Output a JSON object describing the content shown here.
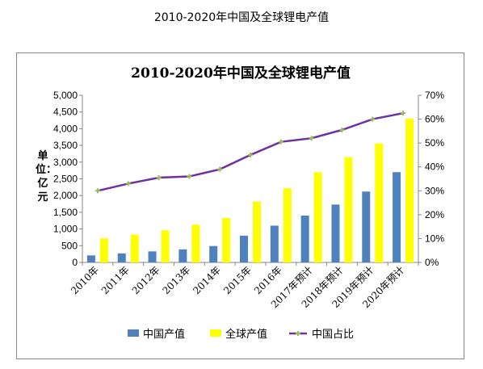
{
  "page_caption": "2010-2020年中国及全球锂电产值",
  "chart_data": {
    "type": "bar",
    "title": "2010-2020年中国及全球锂电产值",
    "ylabel": "单位：亿元",
    "categories": [
      "2010年",
      "2011年",
      "2012年",
      "2013年",
      "2014年",
      "2015年",
      "2016年",
      "2017年预计",
      "2018年预计",
      "2019年预计",
      "2020年预计"
    ],
    "series": [
      {
        "name": "中国产值",
        "type": "bar",
        "axis": "left",
        "color": "#4f81bd",
        "values": [
          210,
          270,
          330,
          390,
          490,
          800,
          1100,
          1400,
          1730,
          2120,
          2700
        ]
      },
      {
        "name": "全球产值",
        "type": "bar",
        "axis": "left",
        "color": "#ffff00",
        "values": [
          720,
          830,
          960,
          1130,
          1330,
          1820,
          2220,
          2700,
          3150,
          3560,
          4300
        ]
      },
      {
        "name": "中国占比",
        "type": "line",
        "axis": "right",
        "color": "#7030a0",
        "marker_color": "#9bbb59",
        "values": [
          0.3,
          0.33,
          0.355,
          0.36,
          0.39,
          0.45,
          0.505,
          0.52,
          0.555,
          0.6,
          0.625
        ]
      }
    ],
    "yleft": {
      "min": 0,
      "max": 5000,
      "ticks": [
        "0",
        "500",
        "1,000",
        "1,500",
        "2,000",
        "2,500",
        "3,000",
        "3,500",
        "4,000",
        "4,500",
        "5,000"
      ]
    },
    "yright": {
      "min": 0,
      "max": 0.7,
      "ticks": [
        "0%",
        "10%",
        "20%",
        "30%",
        "40%",
        "50%",
        "60%",
        "70%"
      ]
    },
    "grid": false,
    "legend_position": "bottom"
  }
}
